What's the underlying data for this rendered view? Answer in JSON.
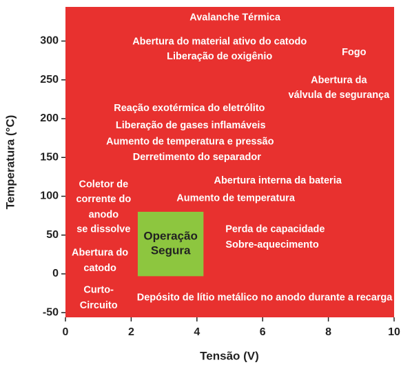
{
  "chart_data": {
    "type": "region",
    "x_label": "Tensão (V)",
    "y_label": "Temperatura (°C)",
    "xlim": [
      0,
      10
    ],
    "xticks": [
      0,
      2,
      4,
      6,
      8,
      10
    ],
    "ylim": [
      -56,
      344
    ],
    "yticks": [
      -50,
      0,
      50,
      100,
      150,
      200,
      250,
      300
    ],
    "background_color": "#e8312f",
    "text_color": "#ffffff",
    "region": {
      "label": [
        "Operação",
        "Segura"
      ],
      "x": [
        2.2,
        4.2
      ],
      "y": [
        -3,
        80
      ],
      "color": "#8dc63f"
    },
    "annotations": [
      {
        "text": "Avalanche Térmica",
        "x": 5.16,
        "y": 330
      },
      {
        "text": "Abertura do material ativo do catodo",
        "x": 4.69,
        "y": 299
      },
      {
        "text": "Liberação de oxigênio",
        "x": 4.69,
        "y": 280
      },
      {
        "text": "Fogo",
        "x": 8.78,
        "y": 285
      },
      {
        "text": "Abertura da",
        "x": 8.32,
        "y": 249
      },
      {
        "text": "válvula de segurança",
        "x": 8.32,
        "y": 230
      },
      {
        "text": "Reação exotérmica do eletrólito",
        "x": 3.77,
        "y": 213
      },
      {
        "text": "Liberação de gases inflamáveis",
        "x": 3.81,
        "y": 191
      },
      {
        "text": "Aumento de temperatura e pressão",
        "x": 3.79,
        "y": 170
      },
      {
        "text": "Derretimento do separador",
        "x": 4.0,
        "y": 150
      },
      {
        "text": "Abertura interna da bateria",
        "x": 6.46,
        "y": 120
      },
      {
        "text": "Aumento de temperatura",
        "x": 5.18,
        "y": 97
      },
      {
        "text": "Coletor de",
        "x": 1.16,
        "y": 115
      },
      {
        "text": "corrente do",
        "x": 1.16,
        "y": 96
      },
      {
        "text": "anodo",
        "x": 1.16,
        "y": 76
      },
      {
        "text": "se dissolve",
        "x": 1.16,
        "y": 57
      },
      {
        "text": "Perda de capacidade",
        "x": 6.38,
        "y": 57
      },
      {
        "text": "Sobre-aquecimento",
        "x": 6.29,
        "y": 37
      },
      {
        "text": "Abertura do",
        "x": 1.05,
        "y": 27
      },
      {
        "text": "catodo",
        "x": 1.05,
        "y": 7
      },
      {
        "text": "Curto-",
        "x": 1.01,
        "y": -21
      },
      {
        "text": "Circuito",
        "x": 1.01,
        "y": -41
      },
      {
        "text": "Depósito de lítio metálico no anodo durante a recarga",
        "x": 6.06,
        "y": -31
      }
    ]
  }
}
